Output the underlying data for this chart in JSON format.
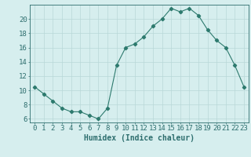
{
  "x": [
    0,
    1,
    2,
    3,
    4,
    5,
    6,
    7,
    8,
    9,
    10,
    11,
    12,
    13,
    14,
    15,
    16,
    17,
    18,
    19,
    20,
    21,
    22,
    23
  ],
  "y": [
    10.5,
    9.5,
    8.5,
    7.5,
    7.0,
    7.0,
    6.5,
    6.0,
    7.5,
    13.5,
    16.0,
    16.5,
    17.5,
    19.0,
    20.0,
    21.5,
    21.0,
    21.5,
    20.5,
    18.5,
    17.0,
    16.0,
    13.5,
    10.5
  ],
  "line_color": "#2d7a6e",
  "marker": "D",
  "marker_size": 2.2,
  "bg_color": "#d6eeee",
  "grid_color": "#b8d8d8",
  "axis_color": "#2d6e6e",
  "xlabel": "Humidex (Indice chaleur)",
  "xlim": [
    -0.5,
    23.5
  ],
  "ylim": [
    5.5,
    22.0
  ],
  "yticks": [
    6,
    8,
    10,
    12,
    14,
    16,
    18,
    20
  ],
  "xticks": [
    0,
    1,
    2,
    3,
    4,
    5,
    6,
    7,
    8,
    9,
    10,
    11,
    12,
    13,
    14,
    15,
    16,
    17,
    18,
    19,
    20,
    21,
    22,
    23
  ],
  "xlabel_fontsize": 7,
  "tick_fontsize": 6.5
}
